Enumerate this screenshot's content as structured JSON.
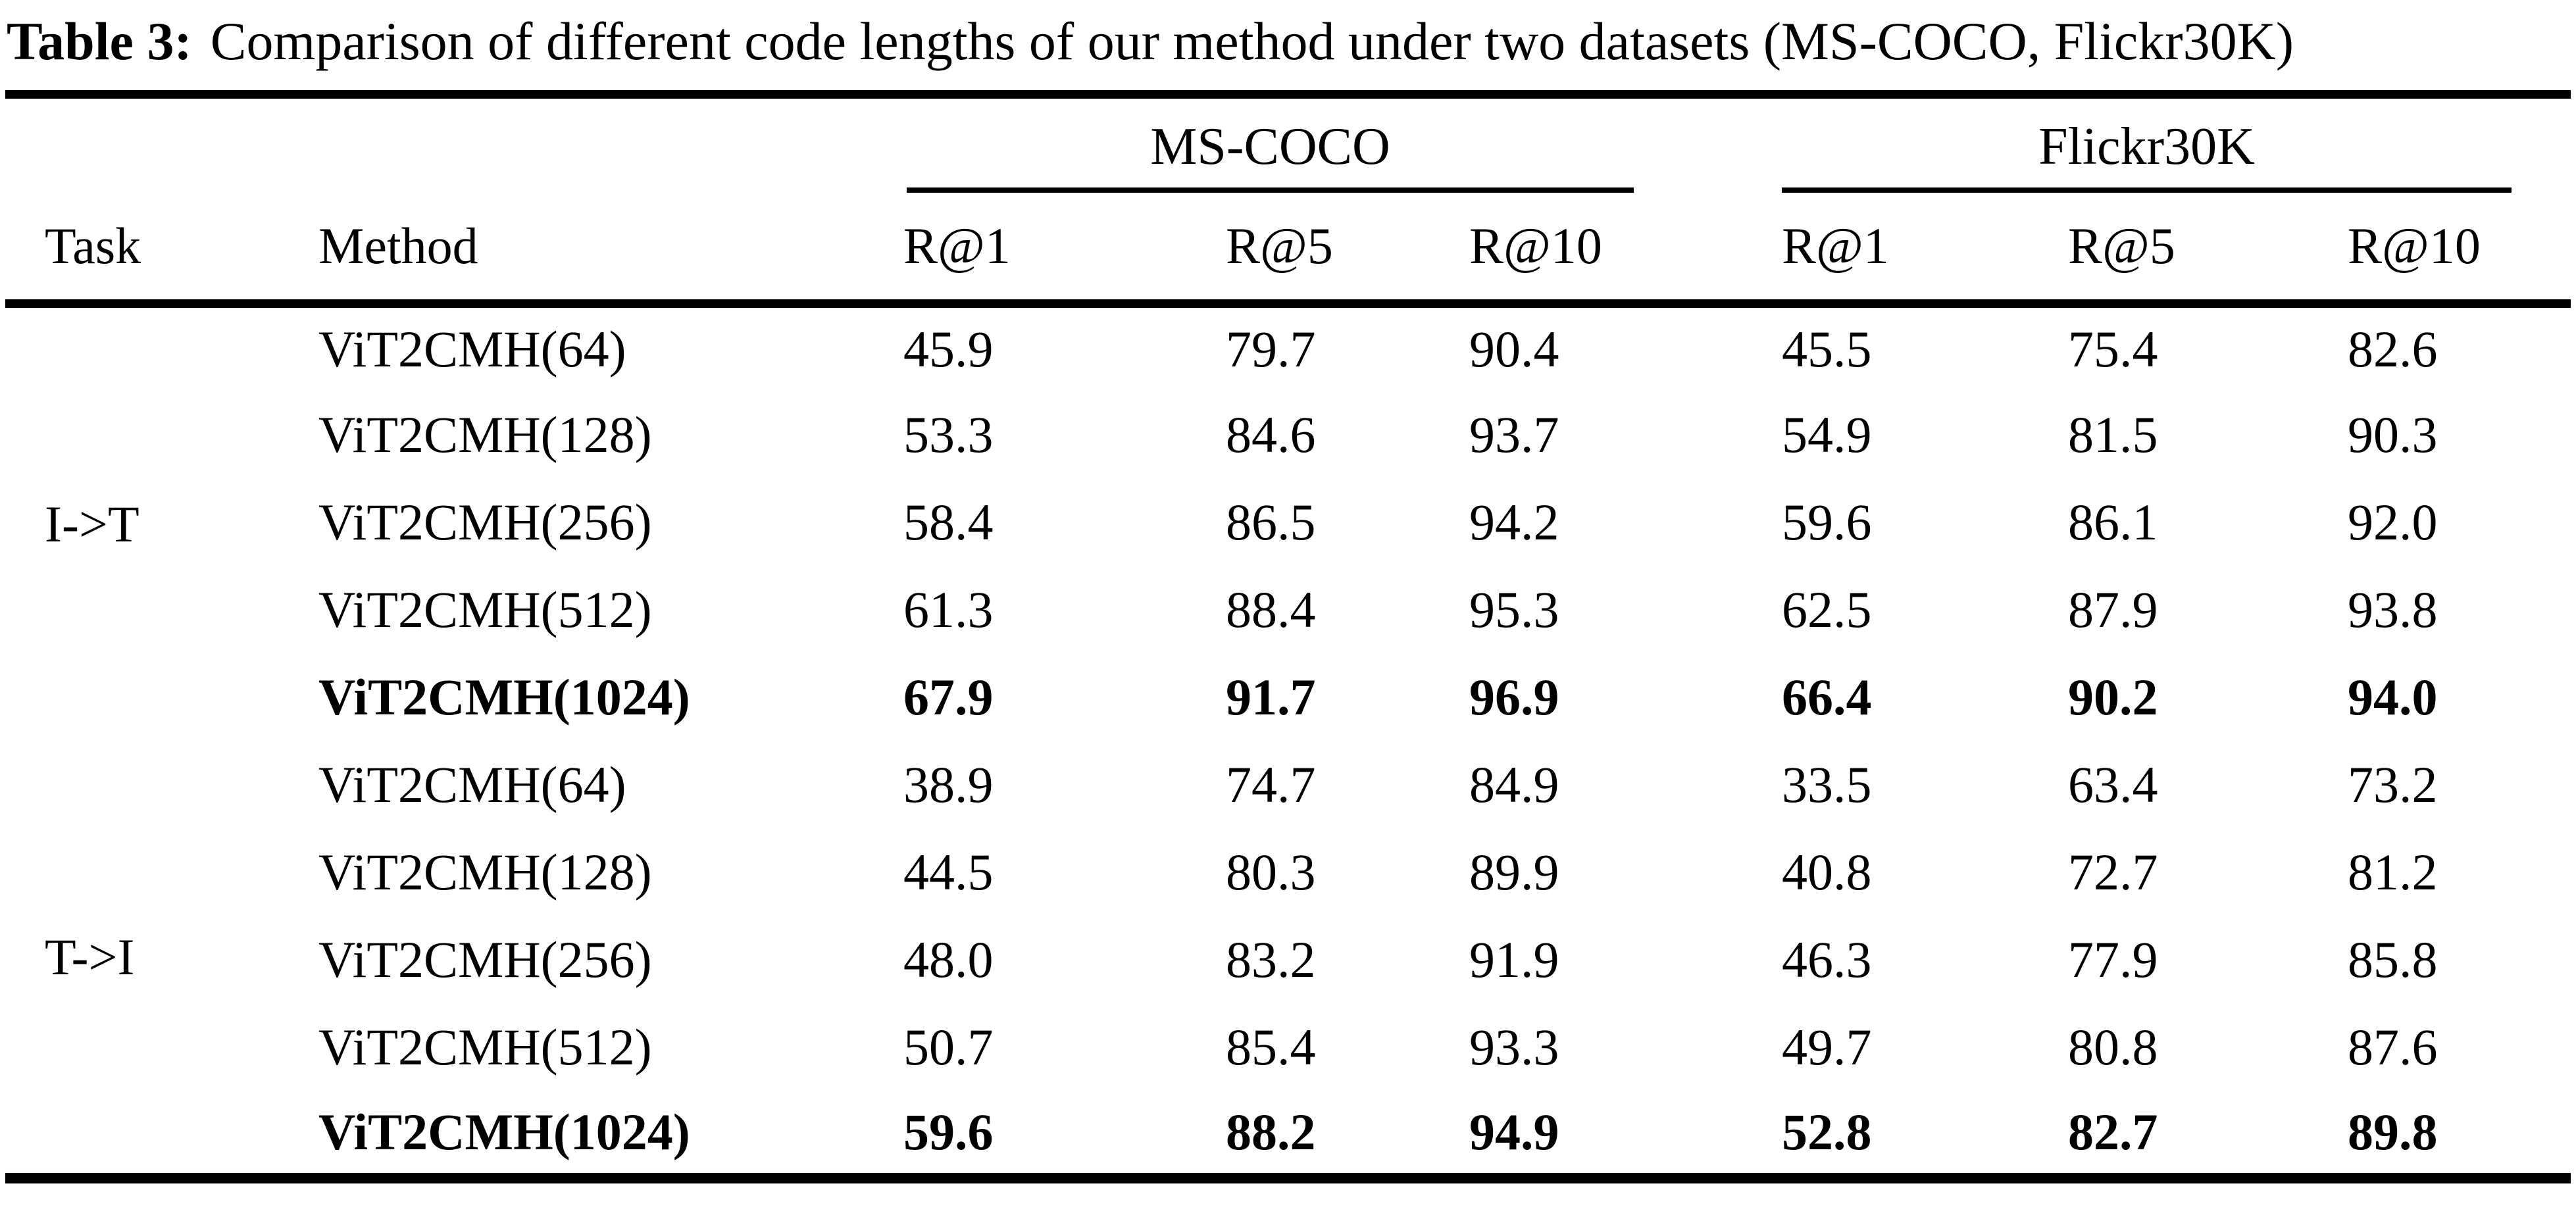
{
  "title": {
    "label": "Table 3:",
    "text": "Comparison of different code lengths of our method under two datasets (MS-COCO, Flickr30K)"
  },
  "colors": {
    "background": "#ffffff",
    "text": "#000000",
    "rule": "#000000"
  },
  "table": {
    "group_headers": [
      {
        "label": "MS-COCO",
        "span": 3
      },
      {
        "label": "Flickr30K",
        "span": 3
      }
    ],
    "column_headers": {
      "task": "Task",
      "method": "Method",
      "metrics": [
        "R@1",
        "R@5",
        "R@10",
        "R@1",
        "R@5",
        "R@10"
      ]
    },
    "groups": [
      {
        "task": "I->T",
        "rows": [
          {
            "method": "ViT2CMH(64)",
            "bold": false,
            "values": [
              "45.9",
              "79.7",
              "90.4",
              "45.5",
              "75.4",
              "82.6"
            ]
          },
          {
            "method": "ViT2CMH(128)",
            "bold": false,
            "values": [
              "53.3",
              "84.6",
              "93.7",
              "54.9",
              "81.5",
              "90.3"
            ]
          },
          {
            "method": "ViT2CMH(256)",
            "bold": false,
            "values": [
              "58.4",
              "86.5",
              "94.2",
              "59.6",
              "86.1",
              "92.0"
            ]
          },
          {
            "method": "ViT2CMH(512)",
            "bold": false,
            "values": [
              "61.3",
              "88.4",
              "95.3",
              "62.5",
              "87.9",
              "93.8"
            ]
          },
          {
            "method": "ViT2CMH(1024)",
            "bold": true,
            "values": [
              "67.9",
              "91.7",
              "96.9",
              "66.4",
              "90.2",
              "94.0"
            ]
          }
        ]
      },
      {
        "task": "T->I",
        "rows": [
          {
            "method": "ViT2CMH(64)",
            "bold": false,
            "values": [
              "38.9",
              "74.7",
              "84.9",
              "33.5",
              "63.4",
              "73.2"
            ]
          },
          {
            "method": "ViT2CMH(128)",
            "bold": false,
            "values": [
              "44.5",
              "80.3",
              "89.9",
              "40.8",
              "72.7",
              "81.2"
            ]
          },
          {
            "method": "ViT2CMH(256)",
            "bold": false,
            "values": [
              "48.0",
              "83.2",
              "91.9",
              "46.3",
              "77.9",
              "85.8"
            ]
          },
          {
            "method": "ViT2CMH(512)",
            "bold": false,
            "values": [
              "50.7",
              "85.4",
              "93.3",
              "49.7",
              "80.8",
              "87.6"
            ]
          },
          {
            "method": "ViT2CMH(1024)",
            "bold": true,
            "values": [
              "59.6",
              "88.2",
              "94.9",
              "52.8",
              "82.7",
              "89.8"
            ]
          }
        ]
      }
    ]
  },
  "chart_data": {
    "type": "table",
    "title": "Table 3: Comparison of different code lengths of our method under two datasets (MS-COCO, Flickr30K)",
    "columns": [
      "Task",
      "Method",
      "MS-COCO R@1",
      "MS-COCO R@5",
      "MS-COCO R@10",
      "Flickr30K R@1",
      "Flickr30K R@5",
      "Flickr30K R@10"
    ],
    "rows": [
      [
        "I->T",
        "ViT2CMH(64)",
        45.9,
        79.7,
        90.4,
        45.5,
        75.4,
        82.6
      ],
      [
        "I->T",
        "ViT2CMH(128)",
        53.3,
        84.6,
        93.7,
        54.9,
        81.5,
        90.3
      ],
      [
        "I->T",
        "ViT2CMH(256)",
        58.4,
        86.5,
        94.2,
        59.6,
        86.1,
        92.0
      ],
      [
        "I->T",
        "ViT2CMH(512)",
        61.3,
        88.4,
        95.3,
        62.5,
        87.9,
        93.8
      ],
      [
        "I->T",
        "ViT2CMH(1024)",
        67.9,
        91.7,
        96.9,
        66.4,
        90.2,
        94.0
      ],
      [
        "T->I",
        "ViT2CMH(64)",
        38.9,
        74.7,
        84.9,
        33.5,
        63.4,
        73.2
      ],
      [
        "T->I",
        "ViT2CMH(128)",
        44.5,
        80.3,
        89.9,
        40.8,
        72.7,
        81.2
      ],
      [
        "T->I",
        "ViT2CMH(256)",
        48.0,
        83.2,
        91.9,
        46.3,
        77.9,
        85.8
      ],
      [
        "T->I",
        "ViT2CMH(512)",
        50.7,
        85.4,
        93.3,
        49.7,
        80.8,
        87.6
      ],
      [
        "T->I",
        "ViT2CMH(1024)",
        59.6,
        88.2,
        94.9,
        52.8,
        82.7,
        89.8
      ]
    ]
  }
}
